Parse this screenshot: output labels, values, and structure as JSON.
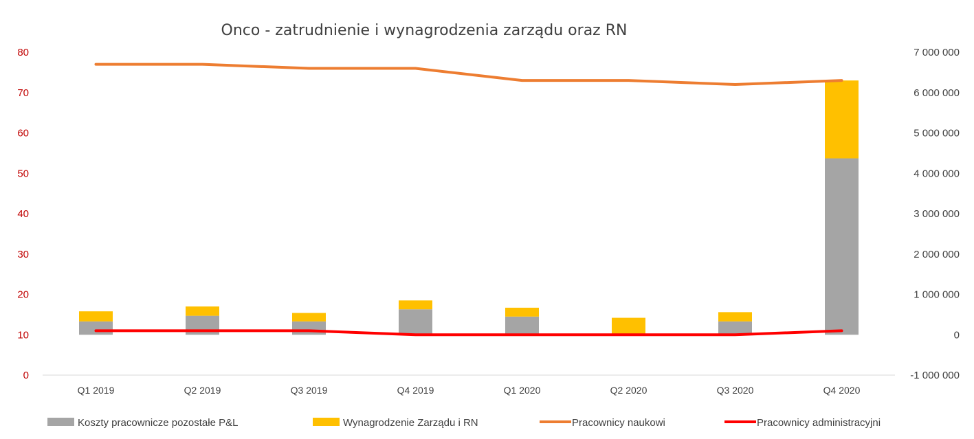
{
  "chart_data": {
    "type": "bar",
    "title": "Onco - zatrudnienie i wynagrodzenia zarządu oraz RN",
    "categories": [
      "Q1 2019",
      "Q2 2019",
      "Q3 2019",
      "Q4 2019",
      "Q1 2020",
      "Q2 2020",
      "Q3 2020",
      "Q4 2020"
    ],
    "y_left": {
      "min": 0,
      "max": 80,
      "ticks": [
        "0",
        "10",
        "20",
        "30",
        "40",
        "50",
        "60",
        "70",
        "80"
      ],
      "color": "#c00000"
    },
    "y_right": {
      "min": -1000000,
      "max": 7000000,
      "ticks": [
        "-1 000 000",
        "0",
        "1 000 000",
        "2 000 000",
        "3 000 000",
        "4 000 000",
        "5 000 000",
        "6 000 000",
        "7 000 000"
      ]
    },
    "grid": false,
    "legend_position": "bottom",
    "series": [
      {
        "name": "Koszty pracownicze pozostałe  P&L",
        "type": "stacked-bar",
        "axis": "right",
        "color": "#a5a5a5",
        "values": [
          330000,
          470000,
          330000,
          630000,
          450000,
          0,
          330000,
          4370000
        ]
      },
      {
        "name": "Wynagrodzenie Zarządu i RN",
        "type": "stacked-bar",
        "axis": "right",
        "color": "#ffc000",
        "values": [
          250000,
          230000,
          210000,
          220000,
          220000,
          420000,
          230000,
          1930000
        ]
      },
      {
        "name": "Pracownicy naukowi",
        "type": "line",
        "axis": "left",
        "color": "#ed7d31",
        "values": [
          77,
          77,
          76,
          76,
          73,
          73,
          72,
          73
        ]
      },
      {
        "name": "Pracownicy administracyjni",
        "type": "line",
        "axis": "left",
        "color": "#ff0000",
        "values": [
          11,
          11,
          11,
          10,
          10,
          10,
          10,
          11
        ]
      }
    ]
  }
}
